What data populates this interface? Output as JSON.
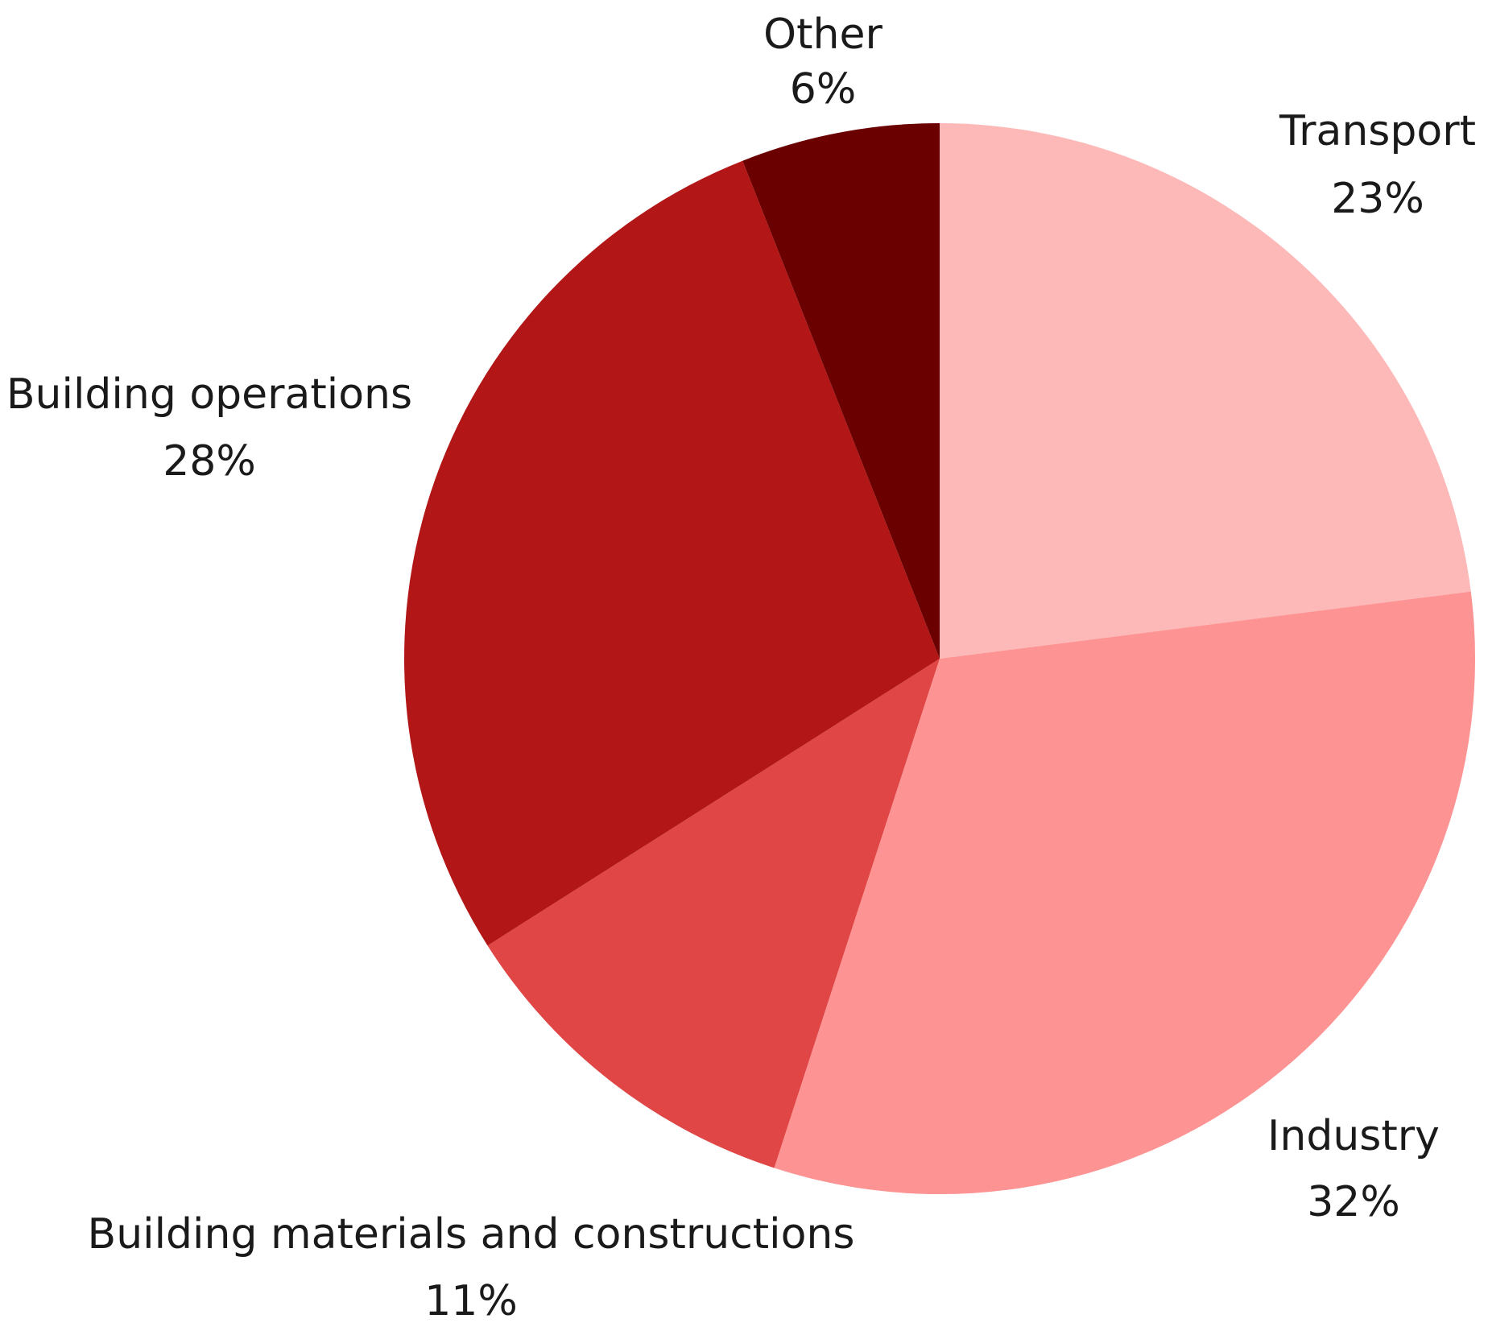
{
  "chart_data": {
    "type": "pie",
    "title": "",
    "slices": [
      {
        "label": "Transport",
        "value": 23,
        "value_label": "23%",
        "color": "#fdb8b8"
      },
      {
        "label": "Industry",
        "value": 32,
        "value_label": "32%",
        "color": "#fd9393"
      },
      {
        "label": "Building materials and constructions",
        "value": 11,
        "value_label": "11%",
        "color": "#e04646"
      },
      {
        "label": "Building operations",
        "value": 28,
        "value_label": "28%",
        "color": "#b21616"
      },
      {
        "label": "Other",
        "value": 6,
        "value_label": "6%",
        "color": "#6b0000"
      }
    ],
    "start_angle_deg": 0,
    "direction": "clockwise",
    "legend": "none",
    "labels": "outside"
  }
}
